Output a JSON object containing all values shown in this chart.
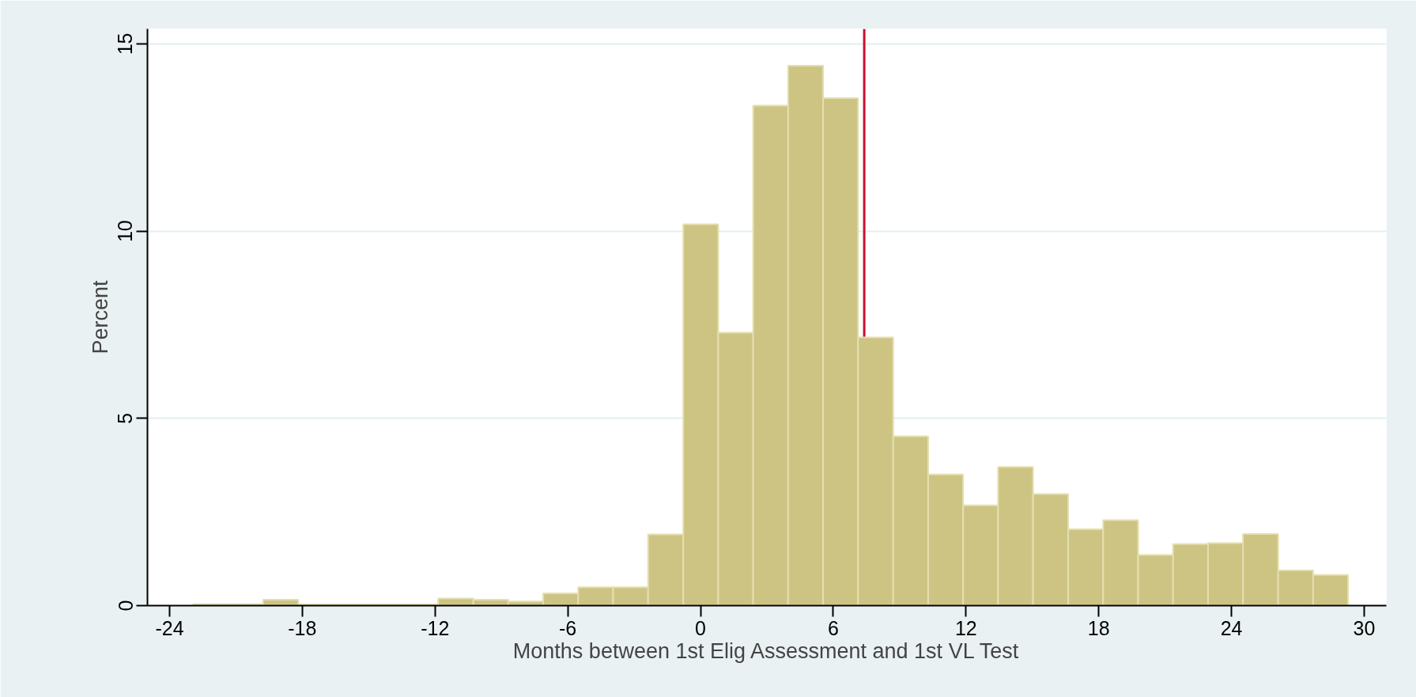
{
  "chart_data": {
    "type": "histogram",
    "xlabel": "Months between 1st Elig Assessment and 1st VL Test",
    "ylabel": "Percent",
    "bins": [
      -22.93,
      -21.35,
      -19.77,
      -18.18,
      -16.6,
      -15.02,
      -13.44,
      -11.86,
      -10.27,
      -8.69,
      -7.11,
      -5.53,
      -3.95,
      -2.37,
      -0.78,
      0.8,
      2.38,
      3.96,
      5.54,
      7.12,
      8.71,
      10.29,
      11.87,
      13.45,
      15.03,
      16.62,
      18.2,
      19.78,
      21.36,
      22.94,
      24.52,
      26.11,
      27.69,
      29.27
    ],
    "values": [
      0.04,
      0.04,
      0.16,
      0.03,
      0.03,
      0.03,
      0.03,
      0.19,
      0.16,
      0.11,
      0.33,
      0.49,
      0.49,
      1.9,
      10.18,
      7.29,
      13.35,
      14.42,
      13.55,
      7.16,
      4.52,
      3.5,
      2.68,
      3.7,
      2.98,
      2.04,
      2.28,
      1.35,
      1.64,
      1.67,
      1.91,
      0.94,
      0.82
    ],
    "color": "#cdc484",
    "xlim": [
      -25,
      31
    ],
    "ylim": [
      0,
      15.4
    ],
    "xticks": [
      -24,
      -18,
      -12,
      -6,
      0,
      6,
      12,
      18,
      24,
      30
    ],
    "yticks": [
      0,
      5,
      10,
      15
    ],
    "grid": "y",
    "ref_lines": [
      {
        "axis": "x",
        "value": 7.4,
        "color": "#c8102e"
      }
    ]
  }
}
